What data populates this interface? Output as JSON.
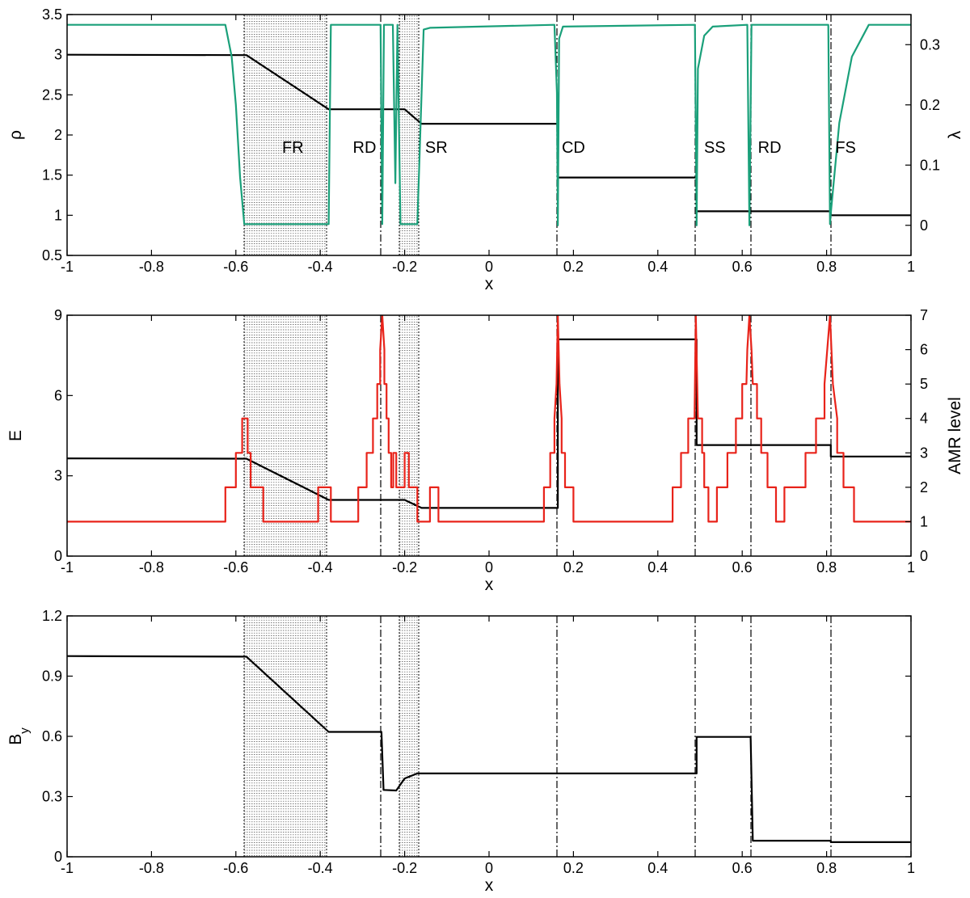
{
  "chart_data": [
    {
      "type": "line",
      "xlabel": "x",
      "ylabel": "ρ",
      "ylabel_right": "λ",
      "xlim": [
        -1,
        1
      ],
      "ylim": [
        0.5,
        3.5
      ],
      "ylim_right": [
        -0.05,
        0.35
      ],
      "xticks": [
        "-1",
        "-0.8",
        "-0.6",
        "-0.4",
        "-0.2",
        "0",
        "0.2",
        "0.4",
        "0.6",
        "0.8",
        "1"
      ],
      "yticks": [
        "0.5",
        "1",
        "1.5",
        "2",
        "2.5",
        "3",
        "3.5"
      ],
      "yticks_right": [
        "0",
        "0.1",
        "0.2",
        "0.3"
      ],
      "grid": false,
      "series": [
        {
          "axis": "left",
          "color": "#000000",
          "points": [
            [
              -1,
              3.0
            ],
            [
              -0.575,
              2.995
            ],
            [
              -0.38,
              2.32
            ],
            [
              -0.253,
              2.32
            ],
            [
              -0.253,
              2.32
            ],
            [
              -0.2,
              2.32
            ],
            [
              -0.16,
              2.14
            ],
            [
              0.163,
              2.14
            ],
            [
              0.163,
              1.47
            ],
            [
              0.492,
              1.47
            ],
            [
              0.492,
              1.05
            ],
            [
              0.617,
              1.05
            ],
            [
              0.617,
              1.05
            ],
            [
              0.81,
              1.05
            ],
            [
              0.81,
              1.0
            ],
            [
              1,
              1.0
            ]
          ]
        },
        {
          "axis": "right",
          "color": "#1aa07a",
          "points": [
            [
              -1,
              0.333
            ],
            [
              -0.625,
              0.333
            ],
            [
              -0.61,
              0.28
            ],
            [
              -0.6,
              0.2
            ],
            [
              -0.59,
              0.08
            ],
            [
              -0.58,
              0.002
            ],
            [
              -0.57,
              0.002
            ],
            [
              -0.38,
              0.002
            ],
            [
              -0.375,
              0.333
            ],
            [
              -0.257,
              0.333
            ],
            [
              -0.253,
              0.002
            ],
            [
              -0.249,
              0.333
            ],
            [
              -0.228,
              0.333
            ],
            [
              -0.222,
              0.07
            ],
            [
              -0.217,
              0.333
            ],
            [
              -0.21,
              0.002
            ],
            [
              -0.17,
              0.002
            ],
            [
              -0.155,
              0.325
            ],
            [
              -0.14,
              0.328
            ],
            [
              0.155,
              0.333
            ],
            [
              0.161,
              0.22
            ],
            [
              0.163,
              0.0
            ],
            [
              0.166,
              0.31
            ],
            [
              0.175,
              0.33
            ],
            [
              0.488,
              0.333
            ],
            [
              0.492,
              0.0
            ],
            [
              0.495,
              0.26
            ],
            [
              0.51,
              0.315
            ],
            [
              0.53,
              0.33
            ],
            [
              0.612,
              0.333
            ],
            [
              0.617,
              0.0
            ],
            [
              0.622,
              0.333
            ],
            [
              0.804,
              0.333
            ],
            [
              0.808,
              0.002
            ],
            [
              0.81,
              0.02
            ],
            [
              0.83,
              0.17
            ],
            [
              0.86,
              0.28
            ],
            [
              0.9,
              0.333
            ],
            [
              1,
              0.333
            ]
          ]
        }
      ],
      "annotations": [
        "FR",
        "RD",
        "SR",
        "CD",
        "SS",
        "RD",
        "FS"
      ],
      "annotation_x": [
        -0.465,
        -0.295,
        -0.125,
        0.2,
        0.535,
        0.665,
        0.845
      ],
      "annotation_y": [
        1.85,
        1.85,
        1.85,
        1.85,
        1.85,
        1.85,
        1.85
      ]
    },
    {
      "type": "line",
      "xlabel": "x",
      "ylabel": "E",
      "ylabel_right": "AMR level",
      "xlim": [
        -1,
        1
      ],
      "ylim": [
        0,
        9
      ],
      "ylim_right": [
        0,
        7
      ],
      "xticks": [
        "-1",
        "-0.8",
        "-0.6",
        "-0.4",
        "-0.2",
        "0",
        "0.2",
        "0.4",
        "0.6",
        "0.8",
        "1"
      ],
      "yticks": [
        "0",
        "3",
        "6",
        "9"
      ],
      "yticks_right": [
        "0",
        "1",
        "2",
        "3",
        "4",
        "5",
        "6",
        "7"
      ],
      "grid": false,
      "series": [
        {
          "axis": "left",
          "color": "#000000",
          "points": [
            [
              -1,
              3.65
            ],
            [
              -0.575,
              3.64
            ],
            [
              -0.38,
              2.1
            ],
            [
              -0.253,
              2.1
            ],
            [
              -0.2,
              2.1
            ],
            [
              -0.16,
              1.8
            ],
            [
              0.163,
              1.8
            ],
            [
              0.163,
              8.1
            ],
            [
              0.492,
              8.1
            ],
            [
              0.492,
              4.15
            ],
            [
              0.617,
              4.15
            ],
            [
              0.81,
              4.15
            ],
            [
              0.81,
              3.72
            ],
            [
              1,
              3.72
            ]
          ]
        },
        {
          "axis": "right",
          "color": "#e8231a",
          "points": [
            [
              -1,
              1
            ],
            [
              -0.625,
              1
            ],
            [
              -0.625,
              2
            ],
            [
              -0.6,
              2
            ],
            [
              -0.6,
              3
            ],
            [
              -0.585,
              3
            ],
            [
              -0.585,
              4
            ],
            [
              -0.572,
              4
            ],
            [
              -0.572,
              3
            ],
            [
              -0.565,
              3
            ],
            [
              -0.565,
              2
            ],
            [
              -0.535,
              2
            ],
            [
              -0.535,
              1
            ],
            [
              -0.405,
              1
            ],
            [
              -0.405,
              2
            ],
            [
              -0.375,
              2
            ],
            [
              -0.375,
              1
            ],
            [
              -0.31,
              1
            ],
            [
              -0.31,
              2
            ],
            [
              -0.29,
              2
            ],
            [
              -0.29,
              3
            ],
            [
              -0.275,
              3
            ],
            [
              -0.275,
              4
            ],
            [
              -0.265,
              4
            ],
            [
              -0.265,
              5
            ],
            [
              -0.258,
              5
            ],
            [
              -0.258,
              6
            ],
            [
              -0.253,
              7
            ],
            [
              -0.248,
              6
            ],
            [
              -0.248,
              5
            ],
            [
              -0.243,
              5
            ],
            [
              -0.243,
              4
            ],
            [
              -0.238,
              4
            ],
            [
              -0.238,
              3
            ],
            [
              -0.232,
              3
            ],
            [
              -0.232,
              2
            ],
            [
              -0.227,
              2
            ],
            [
              -0.227,
              3
            ],
            [
              -0.22,
              3
            ],
            [
              -0.22,
              2
            ],
            [
              -0.2,
              2
            ],
            [
              -0.2,
              3
            ],
            [
              -0.19,
              3
            ],
            [
              -0.19,
              2
            ],
            [
              -0.17,
              2
            ],
            [
              -0.17,
              1
            ],
            [
              -0.14,
              1
            ],
            [
              -0.14,
              2
            ],
            [
              -0.12,
              2
            ],
            [
              -0.12,
              1
            ],
            [
              0.13,
              1
            ],
            [
              0.13,
              2
            ],
            [
              0.145,
              2
            ],
            [
              0.145,
              3
            ],
            [
              0.155,
              3
            ],
            [
              0.155,
              4
            ],
            [
              0.16,
              5
            ],
            [
              0.163,
              7
            ],
            [
              0.167,
              5
            ],
            [
              0.172,
              4
            ],
            [
              0.172,
              3
            ],
            [
              0.18,
              3
            ],
            [
              0.18,
              2
            ],
            [
              0.2,
              2
            ],
            [
              0.2,
              1
            ],
            [
              0.435,
              1
            ],
            [
              0.435,
              2
            ],
            [
              0.455,
              2
            ],
            [
              0.455,
              3
            ],
            [
              0.472,
              3
            ],
            [
              0.472,
              4
            ],
            [
              0.487,
              4
            ],
            [
              0.49,
              7
            ],
            [
              0.495,
              4
            ],
            [
              0.505,
              4
            ],
            [
              0.505,
              3
            ],
            [
              0.51,
              3
            ],
            [
              0.51,
              2
            ],
            [
              0.52,
              2
            ],
            [
              0.52,
              1
            ],
            [
              0.54,
              1
            ],
            [
              0.54,
              2
            ],
            [
              0.565,
              2
            ],
            [
              0.565,
              3
            ],
            [
              0.585,
              3
            ],
            [
              0.585,
              4
            ],
            [
              0.6,
              4
            ],
            [
              0.6,
              5
            ],
            [
              0.61,
              5
            ],
            [
              0.612,
              6
            ],
            [
              0.617,
              7
            ],
            [
              0.622,
              6
            ],
            [
              0.625,
              5
            ],
            [
              0.635,
              5
            ],
            [
              0.635,
              4
            ],
            [
              0.645,
              4
            ],
            [
              0.645,
              3
            ],
            [
              0.66,
              3
            ],
            [
              0.66,
              2
            ],
            [
              0.68,
              2
            ],
            [
              0.68,
              1
            ],
            [
              0.7,
              1
            ],
            [
              0.7,
              2
            ],
            [
              0.75,
              2
            ],
            [
              0.75,
              3
            ],
            [
              0.775,
              3
            ],
            [
              0.775,
              4
            ],
            [
              0.795,
              4
            ],
            [
              0.795,
              5
            ],
            [
              0.808,
              7
            ],
            [
              0.815,
              5
            ],
            [
              0.825,
              4
            ],
            [
              0.825,
              3
            ],
            [
              0.84,
              3
            ],
            [
              0.84,
              2
            ],
            [
              0.865,
              2
            ],
            [
              0.865,
              1
            ],
            [
              1,
              1
            ]
          ]
        }
      ]
    },
    {
      "type": "line",
      "xlabel": "x",
      "ylabel": "B",
      "ylabel_sub": "y",
      "xlim": [
        -1,
        1
      ],
      "ylim": [
        0,
        1.2
      ],
      "xticks": [
        "-1",
        "-0.8",
        "-0.6",
        "-0.4",
        "-0.2",
        "0",
        "0.2",
        "0.4",
        "0.6",
        "0.8",
        "1"
      ],
      "yticks": [
        "0",
        "0.3",
        "0.6",
        "0.9",
        "1.2"
      ],
      "grid": false,
      "series": [
        {
          "axis": "left",
          "color": "#000000",
          "points": [
            [
              -1,
              1.0
            ],
            [
              -0.575,
              0.997
            ],
            [
              -0.38,
              0.622
            ],
            [
              -0.255,
              0.622
            ],
            [
              -0.25,
              0.333
            ],
            [
              -0.22,
              0.33
            ],
            [
              -0.2,
              0.39
            ],
            [
              -0.17,
              0.415
            ],
            [
              0.492,
              0.415
            ],
            [
              0.492,
              0.597
            ],
            [
              0.62,
              0.597
            ],
            [
              0.625,
              0.08
            ],
            [
              0.81,
              0.08
            ],
            [
              0.81,
              0.073
            ],
            [
              1,
              0.073
            ]
          ]
        }
      ]
    }
  ]
}
